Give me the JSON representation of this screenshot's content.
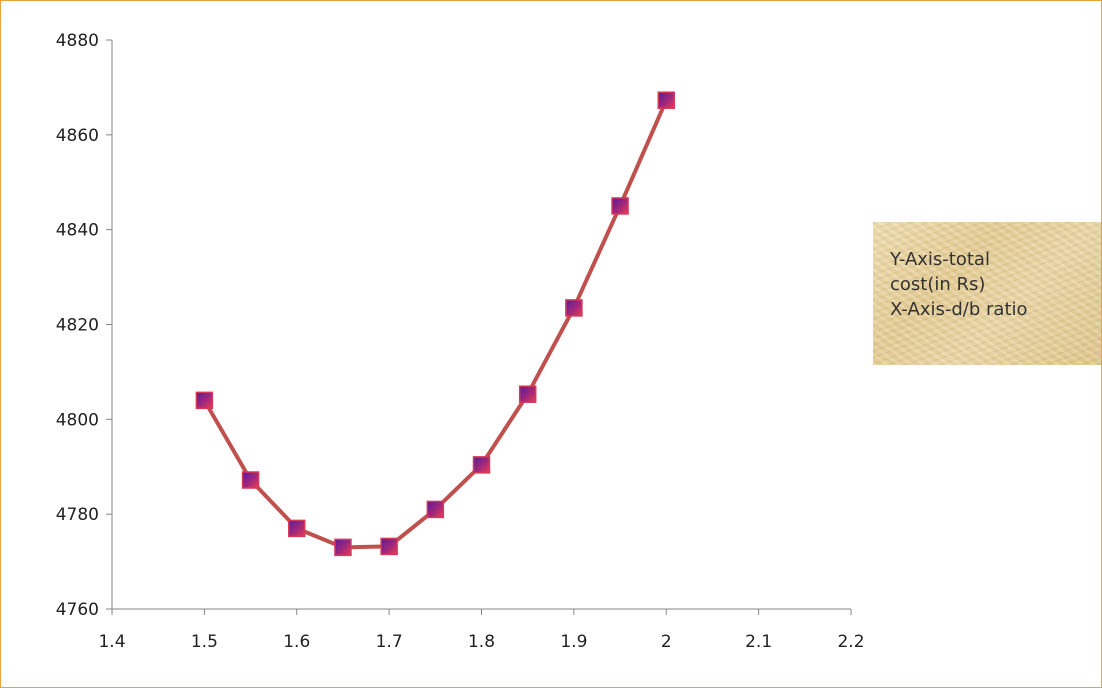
{
  "chart_data": {
    "type": "line",
    "title": "",
    "xlabel": "",
    "ylabel": "",
    "xlim": [
      1.4,
      2.2
    ],
    "ylim": [
      4760,
      4880
    ],
    "x_ticks": [
      "1.4",
      "1.5",
      "1.6",
      "1.7",
      "1.8",
      "1.9",
      "2",
      "2.1",
      "2.2"
    ],
    "y_ticks": [
      "4760",
      "4780",
      "4800",
      "4820",
      "4840",
      "4860",
      "4880"
    ],
    "grid": false,
    "legend": "none",
    "series": [
      {
        "x": [
          1.5,
          1.55,
          1.6,
          1.65,
          1.7,
          1.75,
          1.8,
          1.85,
          1.9,
          1.95,
          2.0
        ],
        "values": [
          4804,
          4787.2,
          4777,
          4773,
          4773.2,
          4781,
          4790.4,
          4805.3,
          4823.5,
          4845,
          4867.3
        ],
        "line_color": "#C0504D",
        "marker": "square",
        "marker_fill": [
          "#6A1FA0",
          "#E0305A"
        ],
        "marker_border": "#D43A5A"
      }
    ],
    "annotation": {
      "lines": [
        "Y-Axis-total",
        "cost(in Rs)",
        "X-Axis-d/b ratio"
      ]
    }
  }
}
